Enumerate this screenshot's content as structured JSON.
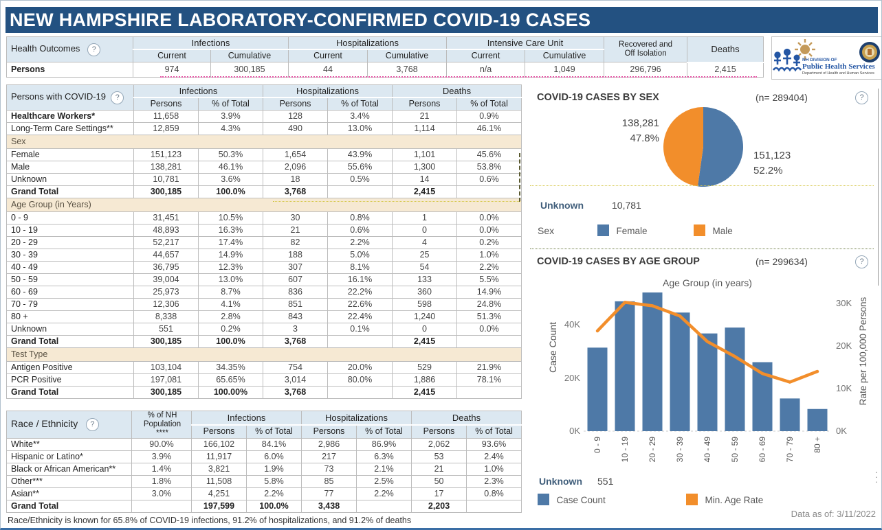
{
  "title": "NEW HAMPSHIRE LABORATORY-CONFIRMED COVID-19 CASES",
  "colors": {
    "header_navy": "#235181",
    "header_fill": "#dce8f1",
    "band_tan": "#f6e9d3",
    "bar_blue": "#4e79a7",
    "line_orange": "#f28e2b"
  },
  "health": {
    "label": "Health Outcomes",
    "help_icon": "?",
    "groups": [
      "Infections",
      "Hospitalizations",
      "Intensive Care Unit"
    ],
    "recovered_label": "Recovered and\nOff Isolation",
    "deaths_label": "Deaths",
    "sub_headers": [
      "Current",
      "Cumulative",
      "Current",
      "Cumulative",
      "Current",
      "Cumulative"
    ],
    "row_label": "Persons",
    "values": [
      "974",
      "300,185",
      "44",
      "3,768",
      "n/a",
      "1,049",
      "296,796",
      "2,415"
    ]
  },
  "logo": {
    "org_line1": "NH DIVISION OF",
    "org_line2": "Public Health Services",
    "org_line3": "Department of Health and Human Services"
  },
  "persons_table": {
    "label": "Persons with COVID-19",
    "help_icon": "?",
    "groups": [
      "Infections",
      "Hospitalizations",
      "Deaths"
    ],
    "sub_headers": [
      "Persons",
      "% of Total"
    ],
    "rows": [
      {
        "label": "Healthcare Workers*",
        "bold": true,
        "cells": [
          "11,658",
          "3.9%",
          "128",
          "3.4%",
          "21",
          "0.9%"
        ]
      },
      {
        "label": "Long-Term Care Settings**",
        "cells": [
          "12,859",
          "4.3%",
          "490",
          "13.0%",
          "1,114",
          "46.1%"
        ]
      },
      {
        "section": "Sex"
      },
      {
        "label": "Female",
        "cells": [
          "151,123",
          "50.3%",
          "1,654",
          "43.9%",
          "1,101",
          "45.6%"
        ]
      },
      {
        "label": "Male",
        "cells": [
          "138,281",
          "46.1%",
          "2,096",
          "55.6%",
          "1,300",
          "53.8%"
        ]
      },
      {
        "label": "Unknown",
        "cells": [
          "10,781",
          "3.6%",
          "18",
          "0.5%",
          "14",
          "0.6%"
        ]
      },
      {
        "label": "Grand Total",
        "total": true,
        "cells": [
          "300,185",
          "100.0%",
          "3,768",
          "",
          "2,415",
          ""
        ]
      },
      {
        "section": "Age Group (in Years)"
      },
      {
        "label": "0 - 9",
        "cells": [
          "31,451",
          "10.5%",
          "30",
          "0.8%",
          "1",
          "0.0%"
        ]
      },
      {
        "label": "10 - 19",
        "cells": [
          "48,893",
          "16.3%",
          "21",
          "0.6%",
          "0",
          "0.0%"
        ]
      },
      {
        "label": "20 - 29",
        "cells": [
          "52,217",
          "17.4%",
          "82",
          "2.2%",
          "4",
          "0.2%"
        ]
      },
      {
        "label": "30 - 39",
        "cells": [
          "44,657",
          "14.9%",
          "188",
          "5.0%",
          "25",
          "1.0%"
        ]
      },
      {
        "label": "40 - 49",
        "cells": [
          "36,795",
          "12.3%",
          "307",
          "8.1%",
          "54",
          "2.2%"
        ]
      },
      {
        "label": "50 - 59",
        "cells": [
          "39,004",
          "13.0%",
          "607",
          "16.1%",
          "133",
          "5.5%"
        ]
      },
      {
        "label": "60 - 69",
        "cells": [
          "25,973",
          "8.7%",
          "836",
          "22.2%",
          "360",
          "14.9%"
        ]
      },
      {
        "label": "70 - 79",
        "cells": [
          "12,306",
          "4.1%",
          "851",
          "22.6%",
          "598",
          "24.8%"
        ]
      },
      {
        "label": "80 +",
        "cells": [
          "8,338",
          "2.8%",
          "843",
          "22.4%",
          "1,240",
          "51.3%"
        ]
      },
      {
        "label": "Unknown",
        "cells": [
          "551",
          "0.2%",
          "3",
          "0.1%",
          "0",
          "0.0%"
        ]
      },
      {
        "label": "Grand Total",
        "total": true,
        "cells": [
          "300,185",
          "100.0%",
          "3,768",
          "",
          "2,415",
          ""
        ]
      },
      {
        "section": "Test Type"
      },
      {
        "label": "Antigen Positive",
        "cells": [
          "103,104",
          "34.35%",
          "754",
          "20.0%",
          "529",
          "21.9%"
        ]
      },
      {
        "label": "PCR Positive",
        "cells": [
          "197,081",
          "65.65%",
          "3,014",
          "80.0%",
          "1,886",
          "78.1%"
        ]
      },
      {
        "label": "Grand Total",
        "total": true,
        "cells": [
          "300,185",
          "100.00%",
          "3,768",
          "",
          "2,415",
          ""
        ]
      }
    ]
  },
  "race_table": {
    "label": "Race / Ethnicity",
    "help_icon": "?",
    "pop_header": "% of NH\nPopulation\n****",
    "groups": [
      "Infections",
      "Hospitalizations",
      "Deaths"
    ],
    "sub_headers": [
      "Persons",
      "% of Total"
    ],
    "rows": [
      {
        "label": "White**",
        "cells": [
          "90.0%",
          "166,102",
          "84.1%",
          "2,986",
          "86.9%",
          "2,062",
          "93.6%"
        ]
      },
      {
        "label": "Hispanic or Latino*",
        "cells": [
          "3.9%",
          "11,917",
          "6.0%",
          "217",
          "6.3%",
          "53",
          "2.4%"
        ]
      },
      {
        "label": "Black or African American**",
        "cells": [
          "1.4%",
          "3,821",
          "1.9%",
          "73",
          "2.1%",
          "21",
          "1.0%"
        ]
      },
      {
        "label": "Other***",
        "cells": [
          "1.8%",
          "11,508",
          "5.8%",
          "85",
          "2.5%",
          "50",
          "2.3%"
        ]
      },
      {
        "label": "Asian**",
        "cells": [
          "3.0%",
          "4,251",
          "2.2%",
          "77",
          "2.2%",
          "17",
          "0.8%"
        ]
      },
      {
        "label": "Grand Total",
        "total": true,
        "cells": [
          "",
          "197,599",
          "100.0%",
          "3,438",
          "",
          "2,203",
          ""
        ]
      }
    ]
  },
  "footnote": "Race/Ethnicity is known for 65.8% of COVID-19 infections, 91.2% of hospitalizations, and 91.2% of deaths",
  "chart_data": [
    {
      "type": "pie",
      "title": "COVID-19 CASES BY SEX",
      "n_label": "(n= 289404)",
      "help_icon": "?",
      "slices": [
        {
          "name": "Female",
          "value": 151123,
          "display": "151,123",
          "pct": "52.2%",
          "color": "#4e79a7",
          "label_side": "right"
        },
        {
          "name": "Male",
          "value": 138281,
          "display": "138,281",
          "pct": "47.8%",
          "color": "#f28e2b",
          "label_side": "left"
        }
      ],
      "unknown_label": "Unknown",
      "unknown_value": "10,781",
      "legend_title": "Sex",
      "legend": [
        {
          "name": "Female",
          "color": "#4e79a7"
        },
        {
          "name": "Male",
          "color": "#f28e2b"
        }
      ]
    },
    {
      "type": "bar+line",
      "title": "COVID-19 CASES BY AGE GROUP",
      "n_label": "(n= 299634)",
      "help_icon": "?",
      "xlabel": "Age Group (in years)",
      "ylabel_left": "Case Count",
      "ylabel_right": "Rate per 100,000 Persons",
      "categories": [
        "0 - 9",
        "10 - 19",
        "20 - 29",
        "30 - 39",
        "40 - 49",
        "50 - 59",
        "60 - 69",
        "70 - 79",
        "80 +"
      ],
      "series": [
        {
          "name": "Case Count",
          "type": "bar",
          "color": "#4e79a7",
          "values": [
            31451,
            48893,
            52217,
            44657,
            36795,
            39004,
            25973,
            12306,
            8338
          ]
        },
        {
          "name": "Min. Age Rate",
          "type": "line",
          "color": "#f28e2b",
          "axis": "right",
          "values": [
            23500,
            30200,
            29400,
            27000,
            21000,
            17500,
            13500,
            11500,
            14000
          ]
        }
      ],
      "left_ticks": [
        {
          "label": "0K",
          "value": 0
        },
        {
          "label": "20K",
          "value": 20000
        },
        {
          "label": "40K",
          "value": 40000
        }
      ],
      "right_ticks": [
        {
          "label": "0K",
          "value": 0
        },
        {
          "label": "10K",
          "value": 10000
        },
        {
          "label": "20K",
          "value": 20000
        },
        {
          "label": "30K",
          "value": 30000
        }
      ],
      "left_max": 53000,
      "right_max": 33000,
      "unknown_label": "Unknown",
      "unknown_value": "551",
      "data_as_of": "Data as of:  3/11/2022"
    }
  ]
}
